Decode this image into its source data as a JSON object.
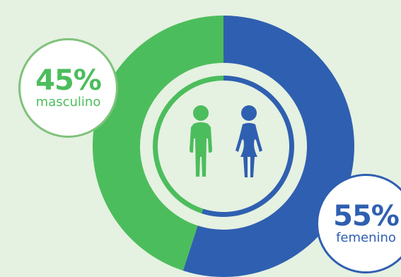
{
  "chart_data": {
    "type": "pie",
    "style": "donut",
    "categories": [
      "masculino",
      "femenino"
    ],
    "values": [
      45,
      55
    ],
    "colors": [
      "#4cbd5c",
      "#2f5fb0"
    ],
    "labels": [
      {
        "value_text": "45%",
        "category_text": "masculino"
      },
      {
        "value_text": "55%",
        "category_text": "femenino"
      }
    ]
  },
  "icons": {
    "male": "male-person-icon",
    "female": "female-person-icon"
  },
  "colors": {
    "background": "#e5f1e1",
    "male": "#4cbd5c",
    "female": "#2f5fb0",
    "male_badge_border": "#7fc27a"
  }
}
